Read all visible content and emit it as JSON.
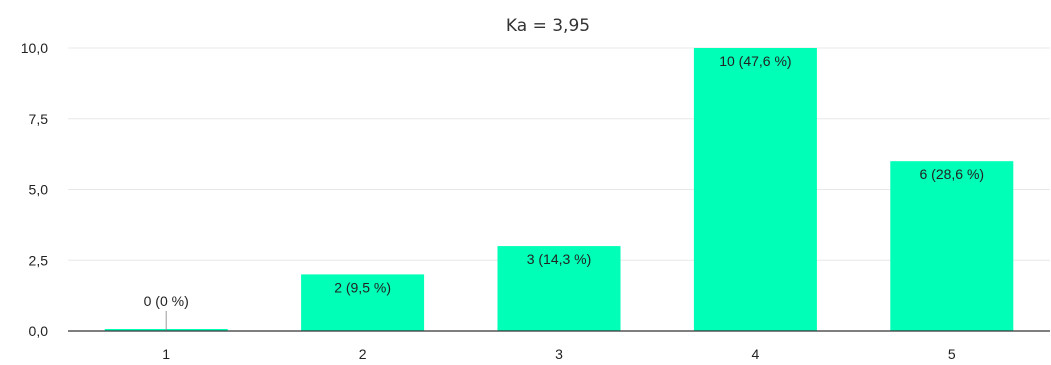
{
  "chart_data": {
    "type": "bar",
    "title": "Ka = 3,95",
    "xlabel": "",
    "ylabel": "",
    "categories": [
      "1",
      "2",
      "3",
      "4",
      "5"
    ],
    "values": [
      0,
      2,
      3,
      10,
      6
    ],
    "data_labels": [
      "0 (0 %)",
      "2 (9,5 %)",
      "3 (14,3 %)",
      "10 (47,6 %)",
      "6 (28,6 %)"
    ],
    "ylim": [
      0,
      10
    ],
    "yticks": [
      0,
      2.5,
      5,
      7.5,
      10
    ],
    "ytick_labels": [
      "0,0",
      "2,5",
      "5,0",
      "7,5",
      "10,0"
    ],
    "grid": true,
    "legend": "none",
    "colors": {
      "bar": "#00ffb7",
      "grid": "#e8e8e8",
      "axis": "#333333",
      "text": "#222222"
    }
  }
}
